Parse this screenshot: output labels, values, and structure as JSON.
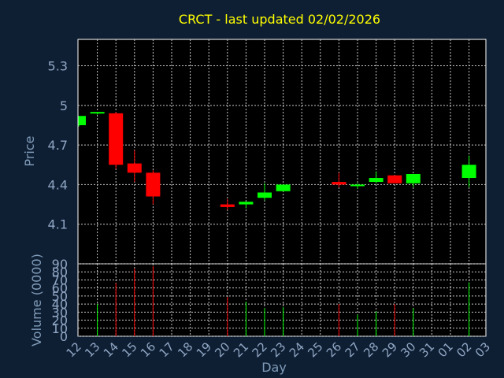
{
  "chart_data": {
    "type": "candlestick",
    "title": "CRCT - last updated 02/02/2026",
    "xlabel": "Day",
    "x_ticks": [
      "12",
      "13",
      "14",
      "15",
      "16",
      "17",
      "18",
      "19",
      "20",
      "21",
      "22",
      "23",
      "24",
      "25",
      "26",
      "27",
      "28",
      "29",
      "30",
      "31",
      "01",
      "02",
      "03"
    ],
    "price_panel": {
      "ylabel": "Price",
      "ylim": [
        3.8,
        5.5
      ],
      "yticks": [
        "4.1",
        "4.4",
        "4.7",
        "5",
        "5.3"
      ],
      "grid": true
    },
    "volume_panel": {
      "ylabel": "Volume (0000)",
      "ylim": [
        0,
        90
      ],
      "yticks": [
        "0",
        "10",
        "20",
        "30",
        "40",
        "50",
        "60",
        "70",
        "80",
        "90"
      ],
      "grid": true
    },
    "candles": [
      {
        "day": "12",
        "open": 4.85,
        "high": 4.92,
        "low": 4.84,
        "close": 4.92
      },
      {
        "day": "13",
        "open": 4.94,
        "high": 4.95,
        "low": 4.93,
        "close": 4.95
      },
      {
        "day": "14",
        "open": 4.94,
        "high": 4.95,
        "low": 4.52,
        "close": 4.55
      },
      {
        "day": "15",
        "open": 4.56,
        "high": 4.66,
        "low": 4.42,
        "close": 4.49
      },
      {
        "day": "16",
        "open": 4.49,
        "high": 4.51,
        "low": 4.25,
        "close": 4.31
      },
      {
        "day": "20",
        "open": 4.25,
        "high": 4.29,
        "low": 4.21,
        "close": 4.23
      },
      {
        "day": "21",
        "open": 4.25,
        "high": 4.27,
        "low": 4.22,
        "close": 4.27
      },
      {
        "day": "22",
        "open": 4.3,
        "high": 4.41,
        "low": 4.28,
        "close": 4.34
      },
      {
        "day": "23",
        "open": 4.35,
        "high": 4.4,
        "low": 4.35,
        "close": 4.4
      },
      {
        "day": "26",
        "open": 4.42,
        "high": 4.49,
        "low": 4.38,
        "close": 4.4
      },
      {
        "day": "27",
        "open": 4.39,
        "high": 4.41,
        "low": 4.37,
        "close": 4.4
      },
      {
        "day": "28",
        "open": 4.42,
        "high": 4.5,
        "low": 4.41,
        "close": 4.45
      },
      {
        "day": "29",
        "open": 4.47,
        "high": 4.47,
        "low": 4.41,
        "close": 4.41
      },
      {
        "day": "30",
        "open": 4.41,
        "high": 4.48,
        "low": 4.38,
        "close": 4.48
      },
      {
        "day": "02",
        "open": 4.45,
        "high": 4.62,
        "low": 4.38,
        "close": 4.55
      }
    ],
    "volumes": [
      {
        "day": "13",
        "value": 40
      },
      {
        "day": "14",
        "value": 66
      },
      {
        "day": "15",
        "value": 84
      },
      {
        "day": "16",
        "value": 87
      },
      {
        "day": "20",
        "value": 49
      },
      {
        "day": "21",
        "value": 43
      },
      {
        "day": "22",
        "value": 35
      },
      {
        "day": "23",
        "value": 36
      },
      {
        "day": "26",
        "value": 40
      },
      {
        "day": "27",
        "value": 27
      },
      {
        "day": "28",
        "value": 31
      },
      {
        "day": "29",
        "value": 40
      },
      {
        "day": "30",
        "value": 35
      },
      {
        "day": "02",
        "value": 67
      }
    ],
    "colors": {
      "background": "#0f1f33",
      "plot_background": "#000000",
      "frame": "#ffffff",
      "grid": "#c8c8c8",
      "up": "#00ff00",
      "down": "#ff0000",
      "title": "#ffff00",
      "axis_label": "#7f9bb8",
      "tick": "#8fa6c4"
    }
  }
}
